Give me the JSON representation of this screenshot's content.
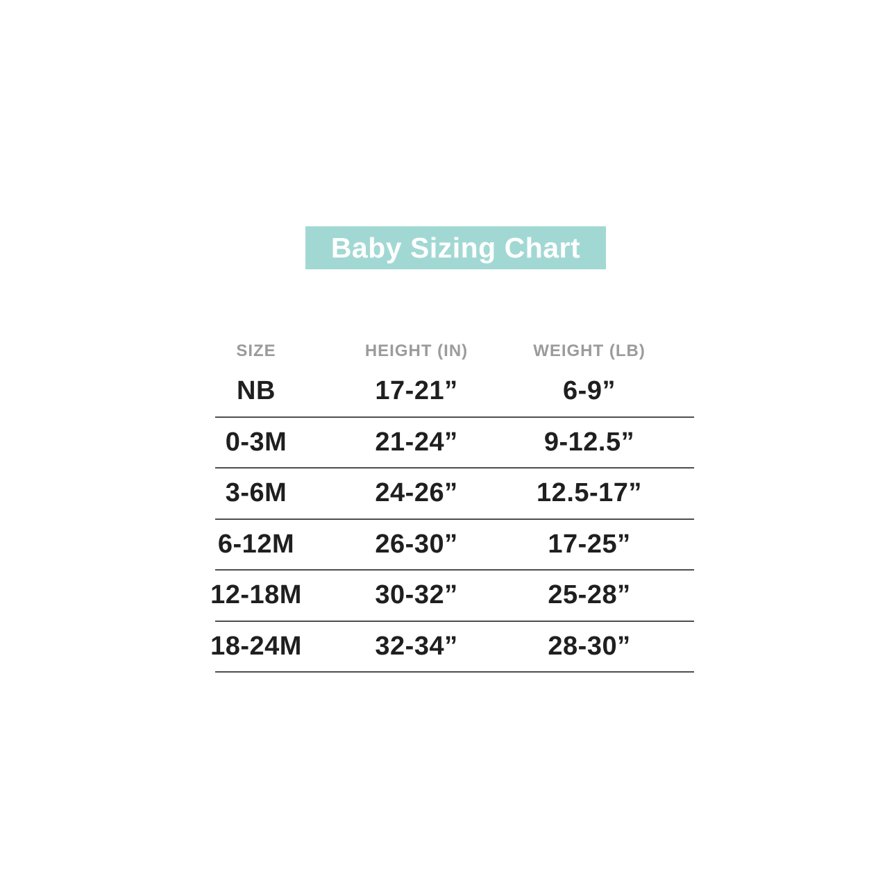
{
  "title_banner": {
    "label": "Baby Sizing Chart",
    "background_color": "#a2d8d3",
    "text_color": "#ffffff"
  },
  "colors": {
    "page_background": "#ffffff",
    "header_text": "#9b9b9b",
    "body_text": "#1f1f1f",
    "divider": "#4d4d4d"
  },
  "chart_data": {
    "type": "table",
    "title": "Baby Sizing Chart",
    "columns": [
      "SIZE",
      "HEIGHT (IN)",
      "WEIGHT (LB)"
    ],
    "rows": [
      [
        "NB",
        "17-21”",
        "6-9”"
      ],
      [
        "0-3M",
        "21-24”",
        "9-12.5”"
      ],
      [
        "3-6M",
        "24-26”",
        "12.5-17”"
      ],
      [
        "6-12M",
        "26-30”",
        "17-25”"
      ],
      [
        "12-18M",
        "30-32”",
        "25-28”"
      ],
      [
        "18-24M",
        "32-34”",
        "28-30”"
      ]
    ],
    "layout": {
      "grid": "horizontal row dividers only",
      "header_style": "uppercase gray",
      "body_style": "bold black"
    }
  }
}
